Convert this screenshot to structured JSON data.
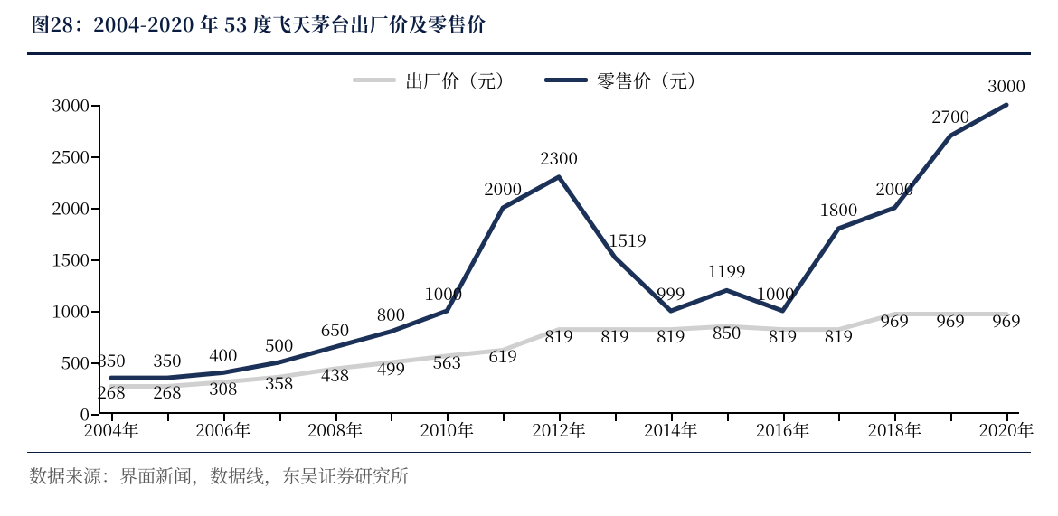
{
  "title": "图28：2004-2020 年 53 度飞天茅台出厂价及零售价",
  "source": "数据来源：界面新闻，数据线，东吴证券研究所",
  "chart": {
    "type": "line",
    "background_color": "#ffffff",
    "title_color": "#0a1d40",
    "rule_color": "#0a1d40",
    "axis_color": "#000000",
    "text_color": "#000000",
    "source_color": "#595959",
    "title_fontsize": 21,
    "label_fontsize": 19,
    "legend_fontsize": 20,
    "source_fontsize": 20,
    "line_width": 5,
    "ylim": [
      0,
      3000
    ],
    "ytick_step": 500,
    "years": [
      2004,
      2005,
      2006,
      2007,
      2008,
      2009,
      2010,
      2011,
      2012,
      2013,
      2014,
      2015,
      2016,
      2017,
      2018,
      2019,
      2020
    ],
    "x_tick_labels": [
      "2004年",
      "2006年",
      "2008年",
      "2010年",
      "2012年",
      "2014年",
      "2016年",
      "2018年",
      "2020年"
    ],
    "x_tick_indices": [
      0,
      2,
      4,
      6,
      8,
      10,
      12,
      14,
      16
    ],
    "series": [
      {
        "name": "出厂价（元）",
        "color": "#d0d0d0",
        "values": [
          268,
          268,
          308,
          358,
          438,
          499,
          563,
          619,
          819,
          819,
          819,
          850,
          819,
          819,
          969,
          969,
          969
        ]
      },
      {
        "name": "零售价（元）",
        "color": "#1b3158",
        "values": [
          350,
          350,
          400,
          500,
          650,
          800,
          1000,
          2000,
          2300,
          1519,
          999,
          1199,
          1000,
          1800,
          2000,
          2700,
          3000
        ]
      }
    ],
    "label_offsets": {
      "factory": [
        [
          0,
          20
        ],
        [
          0,
          20
        ],
        [
          0,
          20
        ],
        [
          0,
          20
        ],
        [
          0,
          20
        ],
        [
          0,
          20
        ],
        [
          0,
          20
        ],
        [
          0,
          20
        ],
        [
          0,
          20
        ],
        [
          0,
          20
        ],
        [
          0,
          20
        ],
        [
          0,
          20
        ],
        [
          0,
          20
        ],
        [
          0,
          20
        ],
        [
          0,
          20
        ],
        [
          0,
          20
        ],
        [
          0,
          20
        ]
      ],
      "retail": [
        [
          0,
          -6
        ],
        [
          0,
          -6
        ],
        [
          0,
          -6
        ],
        [
          0,
          -6
        ],
        [
          0,
          -6
        ],
        [
          0,
          -6
        ],
        [
          -4,
          -6
        ],
        [
          0,
          -8
        ],
        [
          0,
          -8
        ],
        [
          14,
          -6
        ],
        [
          0,
          -6
        ],
        [
          0,
          -8
        ],
        [
          -8,
          -6
        ],
        [
          0,
          -8
        ],
        [
          0,
          -8
        ],
        [
          0,
          -8
        ],
        [
          0,
          -8
        ]
      ]
    }
  }
}
